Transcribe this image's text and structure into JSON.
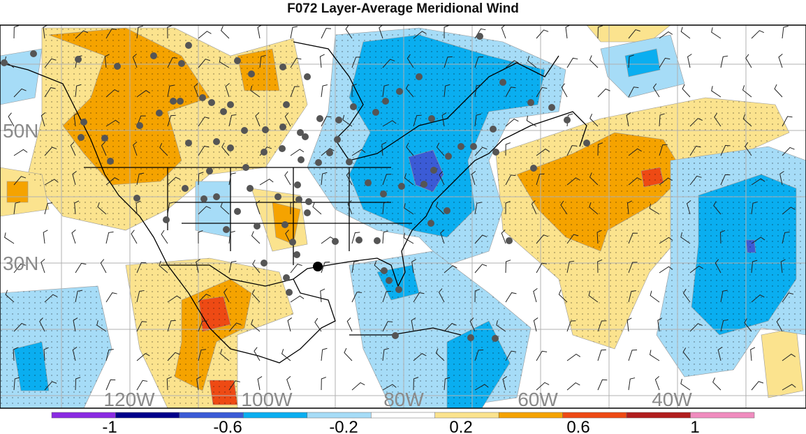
{
  "title": "F072 Layer-Average Meridional Wind",
  "lat_labels": [
    {
      "text": "50N",
      "lat": 50
    },
    {
      "text": "30N",
      "lat": 30
    }
  ],
  "lon_labels": [
    {
      "text": "120W",
      "lon": -120
    },
    {
      "text": "100W",
      "lon": -100
    },
    {
      "text": "80W",
      "lon": -80
    },
    {
      "text": "60W",
      "lon": -60
    },
    {
      "text": "40W",
      "lon": -40
    }
  ],
  "colorbar": {
    "tick_labels": [
      "-1",
      "-0.6",
      "-0.2",
      "0.2",
      "0.6",
      "1"
    ],
    "colors": [
      "#8a2be2",
      "#00008b",
      "#3b5bd6",
      "#0aaef0",
      "#a6dcf7",
      "#ffffff",
      "#fbe38e",
      "#f5a300",
      "#ee4a14",
      "#b11e1e",
      "#f08cbf"
    ]
  },
  "map_colors": {
    "neg_strong": "#3b5bd6",
    "neg": "#0aaef0",
    "neg_weak": "#a6dcf7",
    "pos_weak": "#fbe38e",
    "pos": "#f5a300",
    "pos_strong": "#ee4a14",
    "grid": "#b0b0b0",
    "station": "#555555"
  }
}
